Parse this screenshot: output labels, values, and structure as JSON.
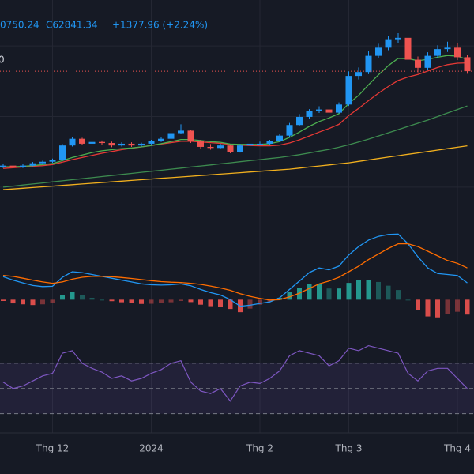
{
  "header": {
    "items": [
      "0750.24",
      "C62841.34",
      "+1377.96 (+2.24%)"
    ],
    "side_label": "0"
  },
  "chart_data": [
    {
      "type": "candlestick",
      "categories": [
        null,
        null,
        null,
        null,
        null,
        "Thg 12",
        null,
        null,
        null,
        null,
        null,
        null,
        null,
        null,
        null,
        "2024",
        null,
        null,
        null,
        null,
        null,
        null,
        null,
        null,
        null,
        null,
        "Thg 2",
        null,
        null,
        null,
        null,
        null,
        null,
        null,
        null,
        "Thg 3",
        null,
        null,
        null,
        null,
        null,
        null,
        null,
        null,
        null,
        null,
        "Thg 4",
        null
      ],
      "open": [
        35700,
        36100,
        35600,
        36100,
        36760,
        37200,
        37700,
        41800,
        43700,
        42300,
        42800,
        42500,
        41800,
        42300,
        41800,
        42300,
        43000,
        43700,
        45300,
        46000,
        43000,
        41400,
        41100,
        41800,
        40000,
        41800,
        42300,
        42300,
        43000,
        44600,
        47600,
        49900,
        51500,
        52000,
        51100,
        53400,
        61500,
        62600,
        67200,
        69500,
        71900,
        72300,
        66100,
        63800,
        67200,
        69100,
        69500,
        66800
      ],
      "high": [
        36600,
        36500,
        36500,
        37100,
        37500,
        38100,
        42200,
        44300,
        44000,
        43300,
        43200,
        42900,
        42700,
        42700,
        42600,
        43400,
        44100,
        45900,
        47800,
        46300,
        43400,
        42200,
        42300,
        42100,
        42200,
        42800,
        42900,
        43400,
        45000,
        48200,
        50700,
        52100,
        52900,
        52500,
        54000,
        62800,
        63900,
        68600,
        70600,
        72900,
        73600,
        72500,
        67000,
        68200,
        70200,
        71200,
        70800,
        67500
      ],
      "low": [
        35400,
        35300,
        35400,
        35900,
        36400,
        36900,
        37500,
        41500,
        42000,
        42000,
        42000,
        41300,
        41500,
        41400,
        41500,
        42100,
        42800,
        43400,
        45000,
        42500,
        40900,
        40600,
        40900,
        39600,
        39800,
        41400,
        41900,
        42000,
        42800,
        44300,
        47200,
        49400,
        51000,
        50600,
        50900,
        53000,
        60500,
        62000,
        66500,
        68800,
        70800,
        65200,
        62500,
        63300,
        66500,
        68300,
        66000,
        62100
      ],
      "close": [
        36100,
        35600,
        36100,
        36760,
        37200,
        37700,
        41800,
        43700,
        42300,
        42800,
        42500,
        41800,
        42300,
        41800,
        42300,
        43000,
        43700,
        45300,
        46000,
        43000,
        41400,
        41100,
        41800,
        40000,
        41800,
        42300,
        42300,
        43000,
        44600,
        47600,
        49900,
        51500,
        52000,
        51100,
        53400,
        61500,
        62600,
        67200,
        69500,
        71900,
        72300,
        66100,
        63800,
        67200,
        69100,
        69500,
        66800,
        62841.34
      ],
      "up_color": "#2196f3",
      "down_color": "#ef5350",
      "lines": [
        {
          "color": "#f2b01e",
          "values": [
            29300,
            29500,
            29700,
            29900,
            30100,
            30300,
            30500,
            30700,
            30900,
            31100,
            31300,
            31500,
            31700,
            31900,
            32100,
            32300,
            32500,
            32700,
            32900,
            33100,
            33300,
            33500,
            33700,
            33900,
            34100,
            34300,
            34500,
            34700,
            34900,
            35100,
            35400,
            35700,
            36000,
            36300,
            36600,
            36900,
            37300,
            37700,
            38100,
            38500,
            38900,
            39300,
            39700,
            40100,
            40500,
            40900,
            41300,
            41700
          ]
        },
        {
          "color": "#3d8b4f",
          "values": [
            30000,
            30300,
            30600,
            30900,
            31200,
            31500,
            31800,
            32100,
            32400,
            32700,
            33000,
            33300,
            33600,
            33900,
            34200,
            34500,
            34800,
            35100,
            35400,
            35700,
            36000,
            36300,
            36600,
            36900,
            37200,
            37500,
            37800,
            38100,
            38400,
            38800,
            39200,
            39700,
            40200,
            40700,
            41300,
            42000,
            42800,
            43600,
            44500,
            45400,
            46300,
            47200,
            48100,
            49000,
            50000,
            51000,
            52000,
            53000
          ]
        },
        {
          "color": "#e53935",
          "values": [
            35300,
            35500,
            35700,
            35900,
            36100,
            36400,
            37100,
            37800,
            38400,
            39000,
            39600,
            40100,
            40600,
            41000,
            41400,
            41800,
            42200,
            42600,
            43000,
            43000,
            42800,
            42600,
            42400,
            42100,
            41900,
            41800,
            41700,
            41700,
            41900,
            42500,
            43400,
            44500,
            45600,
            46600,
            47800,
            50300,
            52300,
            54500,
            56600,
            58500,
            60200,
            61200,
            61900,
            62900,
            63900,
            64700,
            65100,
            65200
          ]
        },
        {
          "color": "#4caf50",
          "values": [
            35800,
            35800,
            35900,
            36100,
            36400,
            36700,
            37500,
            38400,
            39100,
            39800,
            40300,
            40600,
            40900,
            41100,
            41400,
            41800,
            42300,
            42900,
            43500,
            43500,
            43200,
            42900,
            42700,
            42200,
            42100,
            42100,
            42100,
            42300,
            42900,
            44100,
            45600,
            47200,
            48600,
            49600,
            50800,
            53700,
            56000,
            59000,
            61800,
            64400,
            66500,
            66400,
            65800,
            66200,
            66800,
            67300,
            67100,
            66200
          ]
        }
      ],
      "price_line_color": "#ef5350",
      "ylim": [
        22600,
        83000
      ],
      "ygrid": [
        30000,
        50000,
        70000
      ],
      "grid": true
    },
    {
      "type": "macd",
      "series": [
        {
          "color": "#2196f3",
          "values": [
            1230,
            1050,
            900,
            760,
            700,
            720,
            1200,
            1500,
            1450,
            1350,
            1250,
            1150,
            1050,
            950,
            850,
            800,
            780,
            800,
            850,
            750,
            550,
            380,
            250,
            0,
            -350,
            -300,
            -200,
            -120,
            100,
            550,
            1000,
            1450,
            1700,
            1600,
            1800,
            2400,
            2850,
            3200,
            3400,
            3500,
            3520,
            3000,
            2300,
            1700,
            1400,
            1350,
            1300,
            900
          ]
        },
        {
          "color": "#ff6d00",
          "values": [
            1300,
            1250,
            1150,
            1050,
            950,
            880,
            950,
            1100,
            1200,
            1250,
            1250,
            1230,
            1190,
            1140,
            1080,
            1020,
            970,
            940,
            920,
            880,
            820,
            730,
            630,
            500,
            320,
            180,
            70,
            -20,
            0,
            150,
            350,
            600,
            850,
            1000,
            1200,
            1500,
            1800,
            2150,
            2450,
            2750,
            3000,
            3000,
            2850,
            2600,
            2350,
            2100,
            1950,
            1700
          ]
        }
      ],
      "histogram": {
        "up_color": "#26a69a",
        "down_color": "#ef5350",
        "values": [
          -70,
          -200,
          -250,
          -290,
          -250,
          -160,
          250,
          400,
          250,
          100,
          0,
          -80,
          -140,
          -190,
          -230,
          -220,
          -190,
          -140,
          -70,
          -130,
          -270,
          -350,
          -380,
          -500,
          -670,
          -480,
          -270,
          -100,
          100,
          400,
          650,
          850,
          850,
          600,
          600,
          900,
          1050,
          1050,
          950,
          750,
          520,
          0,
          -550,
          -900,
          -950,
          -750,
          -650,
          -800
        ]
      },
      "ylim": [
        -1300,
        4000
      ]
    },
    {
      "type": "rsi",
      "color": "#7e57c2",
      "band_color": "rgba(126,87,194,0.12)",
      "values": [
        55,
        50,
        52,
        56,
        60,
        62,
        78,
        80,
        70,
        66,
        63,
        58,
        60,
        56,
        58,
        62,
        65,
        70,
        72,
        55,
        48,
        46,
        50,
        40,
        52,
        55,
        54,
        58,
        64,
        76,
        80,
        78,
        76,
        68,
        72,
        82,
        80,
        84,
        82,
        80,
        78,
        62,
        56,
        64,
        66,
        66,
        58,
        50
      ],
      "levels": [
        30,
        50,
        70
      ],
      "ylim": [
        16,
        90
      ]
    }
  ]
}
